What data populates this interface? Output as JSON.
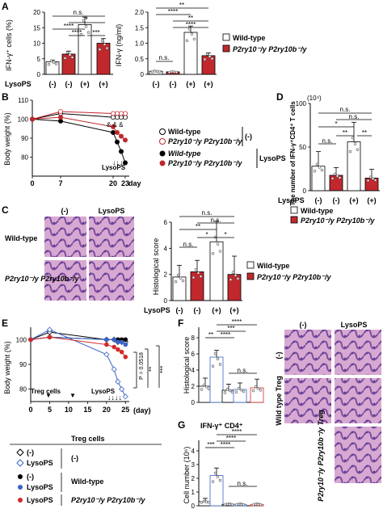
{
  "panels": {
    "A": "A",
    "B": "B",
    "C": "C",
    "D": "D",
    "E": "E",
    "F": "F",
    "G": "G"
  },
  "common": {
    "lysops": "LysoPS",
    "minus": "(-)",
    "plus": "(+)",
    "ns": "n.s.",
    "star1": "*",
    "star2": "**",
    "star3": "***",
    "star4": "****",
    "wild_type": "Wild-type",
    "ko": "P2ry10⁻/y P2ry10b⁻/y",
    "ko_bold": "P2ry10⁻/y P2ry10b⁻/y",
    "colors": {
      "wt": "#ffffff",
      "ko": "#c0282d",
      "blue": "#3a63c6",
      "red": "#d42a2a"
    }
  },
  "panel_a": {
    "left_ylabel": "IFN-γ⁺ cells (%)",
    "right_ylabel": "IFN-γ (ng/ml)",
    "left_ticks": [
      "0",
      "5",
      "10",
      "15",
      "20"
    ],
    "right_ticks": [
      "0",
      "0.5",
      "1.0",
      "1.5",
      "2.0"
    ],
    "legend": [
      "Wild-type",
      "P2ry10⁻/y P2ry10b⁻/y"
    ],
    "x_labels": [
      "(-)",
      "(-)",
      "(+)",
      "(+)"
    ],
    "sig_left": [
      "n.s.",
      "*",
      "****",
      "****",
      "***"
    ],
    "sig_right": [
      "**",
      "****",
      "**",
      "****",
      "n.s."
    ]
  },
  "panel_b": {
    "ylabel": "Body weight (%)",
    "yticks": [
      "80",
      "90",
      "100",
      "110"
    ],
    "xticks": [
      "0",
      "7",
      "20",
      "23"
    ],
    "xunit": "day",
    "lysops_label": "LysoPS",
    "stars": "& & &",
    "legend": [
      "Wild-type",
      "P2ry10⁻/y P2ry10b⁻/y",
      "Wild-type",
      "P2ry10⁻/y P2ry10b⁻/y"
    ],
    "legend_groups": [
      "(-)",
      "LysoPS"
    ]
  },
  "panel_c": {
    "col_labels": [
      "(-)",
      "LysoPS"
    ],
    "row_labels": [
      "Wild-type",
      "P2ry10⁻/y P2ry10b⁻/y"
    ],
    "ylabel": "Histological score",
    "yticks": [
      "0",
      "2",
      "4",
      "6"
    ],
    "legend": [
      "Wild-type",
      "P2ry10⁻/y P2ry10b⁻/y"
    ],
    "x_labels": [
      "(-)",
      "(-)",
      "(+)",
      "(+)"
    ],
    "sig": [
      "n.s.",
      "n.s.",
      "**",
      "n.s.",
      "*",
      "*"
    ]
  },
  "panel_d": {
    "ylabel": "The number of IFN-γ⁺CD4⁺ T cells",
    "unit": "(10⁴)",
    "yticks": [
      "0",
      "50",
      "100"
    ],
    "legend": [
      "Wild-type",
      "P2ry10⁻/y P2ry10b⁻/y"
    ],
    "x_labels": [
      "(-)",
      "(-)",
      "(+)",
      "(+)"
    ],
    "sig": [
      "n.s.",
      "n.s.",
      "*",
      "n.s.",
      "**",
      "**",
      "n.s."
    ]
  },
  "panel_e": {
    "ylabel": "Body weight (%)",
    "yticks": [
      "80",
      "90",
      "100"
    ],
    "xticks": [
      "0",
      "5",
      "10",
      "15",
      "20",
      "25"
    ],
    "xunit": "(day)",
    "treg_label": "Treg cells",
    "lysops_label": "LysoPS",
    "pvalue": "P = 0.0518",
    "sig": [
      "**",
      "***"
    ],
    "legend_header": "Treg cells",
    "legend_rows": [
      {
        "label": "(-)",
        "group": "(-)"
      },
      {
        "label": "LysoPS",
        "group": ""
      },
      {
        "label": "(-)",
        "group": "Wild-type"
      },
      {
        "label": "LysoPS",
        "group": ""
      },
      {
        "label": "LysoPS",
        "group": "P2ry10⁻/y P2ry10b⁻/y"
      }
    ]
  },
  "panel_f": {
    "ylabel": "Histological score",
    "yticks": [
      "0",
      "2",
      "4",
      "6",
      "8"
    ],
    "sig": [
      "**",
      "****",
      "***",
      "****",
      "n.s."
    ],
    "col_labels": [
      "(-)",
      "LysoPS"
    ],
    "row_labels": [
      "(-)",
      "Wild type Treg",
      "P2ry10⁻/y P2ry10b⁻/y Treg"
    ]
  },
  "panel_g": {
    "title": "IFN-γ⁺ CD4⁺",
    "ylabel": "Cell number (10⁶)",
    "yticks": [
      "0",
      "1",
      "2",
      "3",
      "4"
    ],
    "sig": [
      "***",
      "****",
      "****",
      "****",
      "n.s."
    ]
  },
  "chart_data": [
    {
      "type": "bar",
      "categories": [
        "(-) Wild-type",
        "(-) P2ry10/P2ry10b KO",
        "(+) Wild-type",
        "(+) P2ry10/P2ry10b KO"
      ],
      "values": [
        4,
        6.5,
        16,
        10
      ],
      "ylabel": "IFN-γ⁺ cells (%)",
      "ylim": [
        0,
        20
      ]
    },
    {
      "type": "bar",
      "categories": [
        "(-) Wild-type",
        "(-) P2ry10/P2ry10b KO",
        "(+) Wild-type",
        "(+) P2ry10/P2ry10b KO"
      ],
      "values": [
        0.1,
        0.08,
        1.35,
        0.6
      ],
      "ylabel": "IFN-γ (ng/ml)",
      "ylim": [
        0,
        2
      ]
    },
    {
      "type": "line",
      "x": [
        0,
        7,
        20,
        21,
        22,
        23
      ],
      "series": [
        {
          "name": "Wild-type (-)",
          "values": [
            100,
            103,
            101,
            101,
            101,
            101
          ]
        },
        {
          "name": "P2ry10/P2ry10b KO (-)",
          "values": [
            100,
            104,
            103,
            103,
            103,
            103
          ]
        },
        {
          "name": "Wild-type LysoPS",
          "values": [
            100,
            99,
            93,
            88,
            83,
            77
          ]
        },
        {
          "name": "P2ry10/P2ry10b KO LysoPS",
          "values": [
            100,
            101,
            96,
            93,
            91,
            89
          ]
        }
      ],
      "ylabel": "Body weight (%)",
      "ylim": [
        70,
        110
      ]
    },
    {
      "type": "bar",
      "categories": [
        "(-) Wild-type",
        "(-) KO",
        "(+) Wild-type",
        "(+) KO"
      ],
      "values": [
        1.8,
        2.2,
        4.5,
        2.0
      ],
      "ylabel": "Histological score",
      "ylim": [
        0,
        6
      ]
    },
    {
      "type": "bar",
      "categories": [
        "(-) Wild-type",
        "(-) KO",
        "(+) Wild-type",
        "(+) KO"
      ],
      "values": [
        35,
        22,
        70,
        18
      ],
      "ylabel": "The number of IFN-γ⁺CD4⁺ T cells (10⁴)",
      "ylim": [
        0,
        125
      ]
    },
    {
      "type": "line",
      "x": [
        0,
        5,
        20,
        22,
        23,
        24,
        25
      ],
      "series": [
        {
          "name": "(-) / (-)",
          "values": [
            100,
            103,
            100,
            100,
            99,
            99,
            99
          ]
        },
        {
          "name": "(-) / LysoPS",
          "values": [
            100,
            104,
            94,
            88,
            83,
            80,
            77
          ]
        },
        {
          "name": "Wild-type Treg / (-)",
          "values": [
            100,
            101,
            100,
            100,
            100,
            100,
            100
          ]
        },
        {
          "name": "Wild-type Treg / LysoPS",
          "values": [
            100,
            101,
            100,
            100,
            99,
            99,
            98
          ]
        },
        {
          "name": "P2ry10/P2ry10b KO Treg / LysoPS",
          "values": [
            100,
            101,
            98,
            97,
            96,
            95,
            93
          ]
        }
      ],
      "ylabel": "Body weight (%)",
      "ylim": [
        75,
        105
      ]
    },
    {
      "type": "bar",
      "categories": [
        "(-)/(-)",
        "(-)/LysoPS",
        "WT Treg/(-)",
        "WT Treg/LysoPS",
        "KO Treg/LysoPS"
      ],
      "values": [
        2.0,
        5.6,
        1.5,
        1.6,
        1.8
      ],
      "ylabel": "Histological score",
      "ylim": [
        0,
        8
      ]
    },
    {
      "type": "bar",
      "categories": [
        "(-)/(-)",
        "(-)/LysoPS",
        "WT Treg/(-)",
        "WT Treg/LysoPS",
        "KO Treg/LysoPS"
      ],
      "values": [
        0.3,
        2.2,
        0.1,
        0.1,
        0.1
      ],
      "ylabel": "Cell number (10⁶)",
      "ylim": [
        0,
        4
      ]
    }
  ]
}
